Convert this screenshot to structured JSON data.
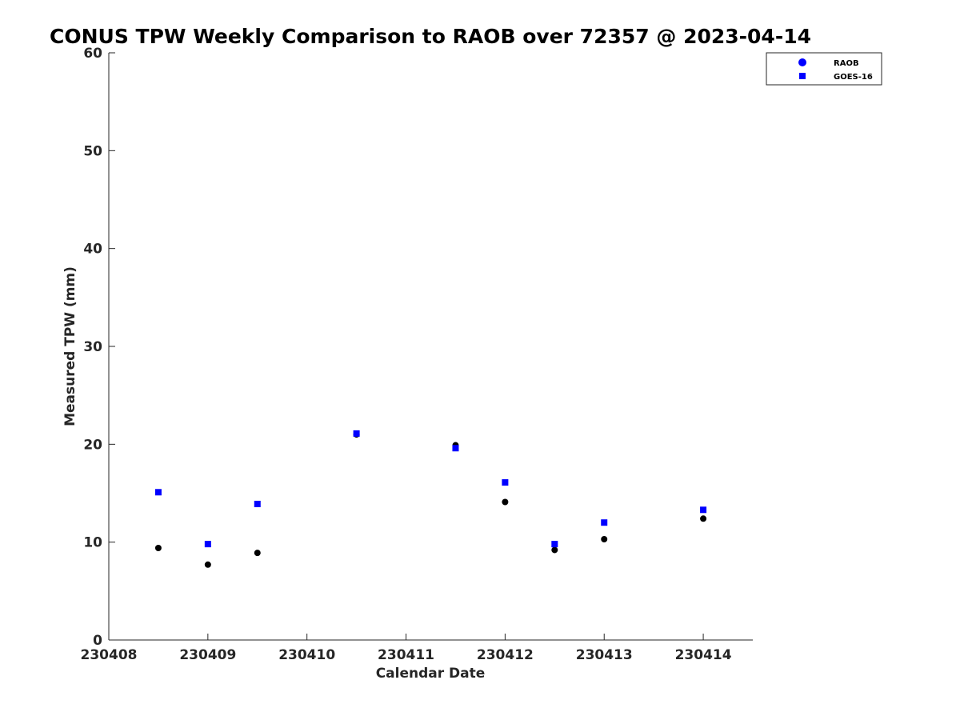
{
  "chart_data": {
    "type": "scatter",
    "title": "CONUS TPW Weekly Comparison to RAOB over 72357 @ 2023-04-14",
    "xlabel": "Calendar Date",
    "ylabel": "Measured TPW (mm)",
    "xlim": [
      0,
      6.5
    ],
    "ylim": [
      0,
      60
    ],
    "x_ticks": [
      0,
      1,
      2,
      3,
      4,
      5,
      6
    ],
    "x_tick_labels": [
      "230408",
      "230409",
      "230410",
      "230411",
      "230412",
      "230413",
      "230414"
    ],
    "y_ticks": [
      0,
      10,
      20,
      30,
      40,
      50,
      60
    ],
    "y_tick_labels": [
      "0",
      "10",
      "20",
      "30",
      "40",
      "50",
      "60"
    ],
    "grid": false,
    "legend_position": "top-right",
    "series": [
      {
        "name": "RAOB",
        "marker": "circle",
        "legend_color": "#0000ff",
        "point_color": "#000000",
        "points": [
          {
            "x": 0.5,
            "y": 9.4
          },
          {
            "x": 1.0,
            "y": 7.7
          },
          {
            "x": 1.5,
            "y": 8.9
          },
          {
            "x": 2.5,
            "y": 21.0
          },
          {
            "x": 3.5,
            "y": 19.9
          },
          {
            "x": 4.0,
            "y": 14.1
          },
          {
            "x": 4.5,
            "y": 9.2
          },
          {
            "x": 5.0,
            "y": 10.3
          },
          {
            "x": 6.0,
            "y": 12.4
          }
        ]
      },
      {
        "name": "GOES-16",
        "marker": "square",
        "legend_color": "#0000ff",
        "point_color": "#0000ff",
        "points": [
          {
            "x": 0.5,
            "y": 15.1
          },
          {
            "x": 1.0,
            "y": 9.8
          },
          {
            "x": 1.5,
            "y": 13.9
          },
          {
            "x": 2.5,
            "y": 21.1
          },
          {
            "x": 3.5,
            "y": 19.6
          },
          {
            "x": 4.0,
            "y": 16.1
          },
          {
            "x": 4.5,
            "y": 9.8
          },
          {
            "x": 5.0,
            "y": 12.0
          },
          {
            "x": 6.0,
            "y": 13.3
          }
        ]
      }
    ]
  }
}
